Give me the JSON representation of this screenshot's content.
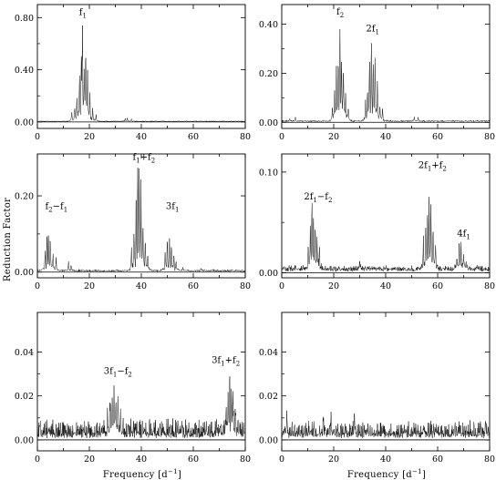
{
  "chart_data": {
    "type": "line",
    "ylabel": "Reduction Factor",
    "xlabel_left": "Frequency [d",
    "xlabel_right": "Frequency [d",
    "xlabel_sup": "−1",
    "xlabel_close": "]",
    "xlim": [
      0,
      80
    ],
    "xticks": [
      "0",
      "20",
      "40",
      "60",
      "80"
    ],
    "panels": [
      {
        "id": "p1",
        "ylim": [
          -0.05,
          0.9
        ],
        "yticks": [
          [
            "0.00",
            0.0
          ],
          [
            "0.40",
            0.4
          ],
          [
            "0.80",
            0.8
          ]
        ],
        "baseline": 0.004,
        "noise": 0.003,
        "peaks": [
          [
            16.2,
            0.3
          ],
          [
            16.9,
            0.55
          ],
          [
            17.3,
            0.86
          ],
          [
            18.0,
            0.38
          ],
          [
            18.6,
            0.7
          ],
          [
            19.3,
            0.34
          ],
          [
            15.2,
            0.18
          ],
          [
            14.3,
            0.12
          ],
          [
            20.2,
            0.2
          ],
          [
            21.3,
            0.1
          ],
          [
            13.2,
            0.07
          ],
          [
            22.6,
            0.05
          ],
          [
            33.8,
            0.025
          ],
          [
            34.6,
            0.03
          ],
          [
            36.2,
            0.02
          ]
        ],
        "annotations": [
          {
            "main": "f",
            "sub": "1",
            "rest": "",
            "x": 17.5,
            "y": 0.82
          }
        ]
      },
      {
        "id": "p2",
        "ylim": [
          -0.025,
          0.48
        ],
        "yticks": [
          [
            "0.00",
            0.0
          ],
          [
            "0.20",
            0.2
          ],
          [
            "0.40",
            0.4
          ]
        ],
        "baseline": 0.004,
        "noise": 0.004,
        "peaks": [
          [
            3.0,
            0.015
          ],
          [
            5.2,
            0.02
          ],
          [
            21.0,
            0.2
          ],
          [
            21.8,
            0.27
          ],
          [
            22.4,
            0.41
          ],
          [
            23.0,
            0.22
          ],
          [
            23.7,
            0.28
          ],
          [
            24.6,
            0.12
          ],
          [
            20.3,
            0.1
          ],
          [
            19.5,
            0.06
          ],
          [
            25.6,
            0.06
          ],
          [
            33.0,
            0.14
          ],
          [
            33.8,
            0.27
          ],
          [
            34.5,
            0.35
          ],
          [
            35.2,
            0.22
          ],
          [
            35.9,
            0.29
          ],
          [
            36.8,
            0.16
          ],
          [
            37.8,
            0.08
          ],
          [
            38.8,
            0.05
          ],
          [
            32.2,
            0.07
          ],
          [
            51.0,
            0.018
          ],
          [
            52.5,
            0.015
          ]
        ],
        "annotations": [
          {
            "main": "f",
            "sub": "2",
            "rest": "",
            "x": 22.5,
            "y": 0.44
          },
          {
            "main": "2f",
            "sub": "1",
            "rest": "",
            "x": 35.0,
            "y": 0.37
          }
        ]
      },
      {
        "id": "p3",
        "ylim": [
          -0.015,
          0.31
        ],
        "yticks": [
          [
            "0.00",
            0.0
          ],
          [
            "0.20",
            0.2
          ]
        ],
        "baseline": 0.003,
        "noise": 0.003,
        "peaks": [
          [
            3.0,
            0.06
          ],
          [
            3.7,
            0.11
          ],
          [
            4.3,
            0.13
          ],
          [
            5.0,
            0.09
          ],
          [
            6.0,
            0.05
          ],
          [
            7.2,
            0.03
          ],
          [
            12.0,
            0.02
          ],
          [
            13.0,
            0.018
          ],
          [
            37.2,
            0.1
          ],
          [
            38.0,
            0.17
          ],
          [
            38.6,
            0.25
          ],
          [
            39.2,
            0.27
          ],
          [
            39.9,
            0.19
          ],
          [
            40.6,
            0.15
          ],
          [
            41.5,
            0.09
          ],
          [
            42.5,
            0.05
          ],
          [
            36.2,
            0.06
          ],
          [
            49.2,
            0.05
          ],
          [
            50.0,
            0.08
          ],
          [
            50.8,
            0.1
          ],
          [
            51.6,
            0.07
          ],
          [
            52.5,
            0.05
          ],
          [
            53.4,
            0.03
          ],
          [
            56.0,
            0.015
          ],
          [
            63.0,
            0.01
          ]
        ],
        "annotations": [
          {
            "main": "f",
            "sub": "2",
            "rest": "−f",
            "sub2": "1",
            "x": 7.3,
            "y": 0.165
          },
          {
            "main": "f",
            "sub": "1",
            "rest": "+f",
            "sub2": "2",
            "x": 41.0,
            "y": 0.295
          },
          {
            "main": "3f",
            "sub": "1",
            "rest": "",
            "x": 52.0,
            "y": 0.165
          }
        ]
      },
      {
        "id": "p4",
        "ylim": [
          -0.005,
          0.118
        ],
        "yticks": [
          [
            "0.00",
            0.0
          ],
          [
            "0.10",
            0.1
          ]
        ],
        "baseline": 0.003,
        "noise": 0.003,
        "peaks": [
          [
            10.2,
            0.025
          ],
          [
            11.0,
            0.04
          ],
          [
            11.6,
            0.064
          ],
          [
            12.2,
            0.05
          ],
          [
            12.9,
            0.052
          ],
          [
            13.6,
            0.032
          ],
          [
            14.5,
            0.02
          ],
          [
            30.0,
            0.008
          ],
          [
            54.5,
            0.03
          ],
          [
            55.4,
            0.052
          ],
          [
            56.1,
            0.064
          ],
          [
            56.7,
            0.092
          ],
          [
            57.4,
            0.06
          ],
          [
            58.2,
            0.045
          ],
          [
            59.2,
            0.025
          ],
          [
            67.4,
            0.018
          ],
          [
            68.3,
            0.028
          ],
          [
            69.0,
            0.025
          ],
          [
            70.0,
            0.015
          ],
          [
            71.0,
            0.01
          ]
        ],
        "annotations": [
          {
            "main": "2f",
            "sub": "1",
            "rest": "−f",
            "sub2": "2",
            "x": 14.0,
            "y": 0.073
          },
          {
            "main": "2f",
            "sub": "1",
            "rest": "+f",
            "sub2": "2",
            "x": 58.0,
            "y": 0.104
          },
          {
            "main": "4f",
            "sub": "1",
            "rest": "",
            "x": 70.0,
            "y": 0.036
          }
        ]
      },
      {
        "id": "p5",
        "ylim": [
          -0.005,
          0.058
        ],
        "yticks": [
          [
            "0.00",
            0.0
          ],
          [
            "0.02",
            0.02
          ],
          [
            "0.04",
            0.04
          ]
        ],
        "baseline": 0.002,
        "noise": 0.007,
        "peaks": [
          [
            27.0,
            0.012
          ],
          [
            28.0,
            0.016
          ],
          [
            28.8,
            0.017
          ],
          [
            29.5,
            0.02
          ],
          [
            30.2,
            0.018
          ],
          [
            31.0,
            0.014
          ],
          [
            32.0,
            0.011
          ],
          [
            72.6,
            0.012
          ],
          [
            73.4,
            0.02
          ],
          [
            74.0,
            0.026
          ],
          [
            74.6,
            0.022
          ],
          [
            75.3,
            0.017
          ],
          [
            76.2,
            0.01
          ]
        ],
        "annotations": [
          {
            "main": "3f",
            "sub": "1",
            "rest": "−f",
            "sub2": "2",
            "x": 31.0,
            "y": 0.03
          },
          {
            "main": "3f",
            "sub": "1",
            "rest": "+f",
            "sub2": "2",
            "x": 72.5,
            "y": 0.035
          }
        ]
      },
      {
        "id": "p6",
        "ylim": [
          -0.005,
          0.058
        ],
        "yticks": [
          [
            "0.00",
            0.0
          ],
          [
            "0.02",
            0.02
          ],
          [
            "0.04",
            0.04
          ]
        ],
        "baseline": 0.002,
        "noise": 0.006,
        "peaks": [
          [
            2.0,
            0.009
          ],
          [
            16.0,
            0.008
          ],
          [
            19.0,
            0.009
          ],
          [
            28.0,
            0.008
          ]
        ],
        "annotations": []
      }
    ]
  }
}
